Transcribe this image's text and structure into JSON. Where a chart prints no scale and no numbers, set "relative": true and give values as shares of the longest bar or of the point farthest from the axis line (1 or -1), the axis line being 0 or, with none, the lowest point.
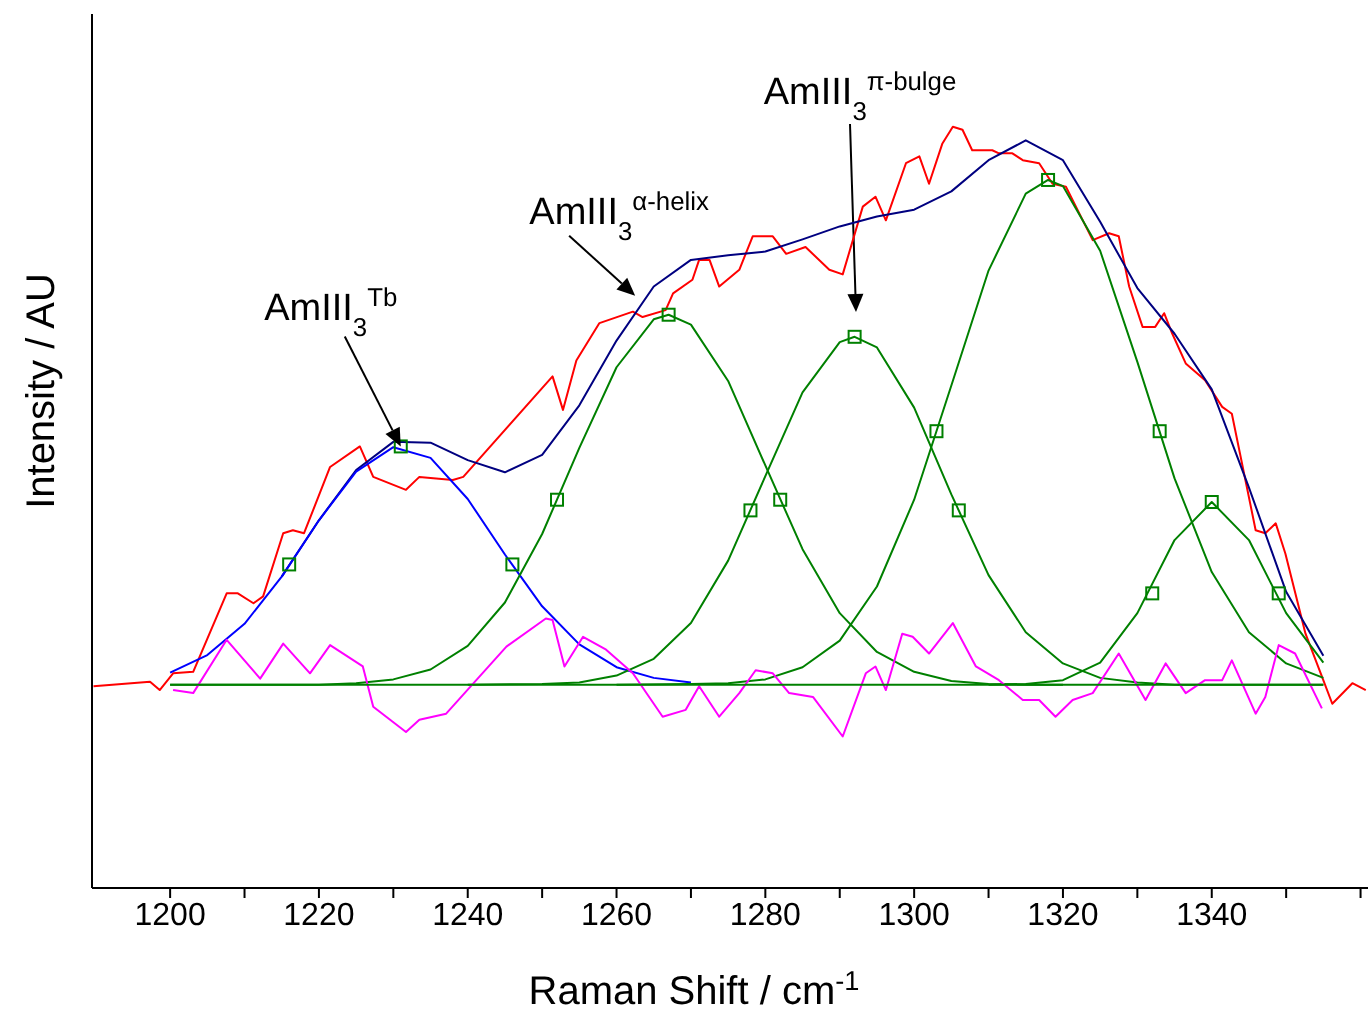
{
  "chart_data": {
    "type": "line",
    "xlabel": "Raman Shift / cm$^{-1}$",
    "ylabel": "Intensity / AU",
    "relative": true,
    "marker": "none",
    "xlim": [
      1189.5,
      1361
    ],
    "xticks": [
      1200,
      {
        "value": 1210,
        "label": null
      },
      1220,
      {
        "value": 1230,
        "label": null
      },
      1240,
      {
        "value": 1250,
        "label": null
      },
      1260,
      {
        "value": 1270,
        "label": null
      },
      1280,
      {
        "value": 1290,
        "label": null
      },
      1300,
      {
        "value": 1310,
        "label": null
      },
      1320,
      {
        "value": 1330,
        "label": null
      },
      1340,
      {
        "value": 1350,
        "label": null
      },
      {
        "value": 1360,
        "label": null
      }
    ],
    "annotations": [
      {
        "text": "AmIII$_{3}$$^{Tb}$",
        "x": 1231,
        "y": 0.58
      },
      {
        "text": "AmIII$_{3}$$^{α-helix}$",
        "x": 1262.5,
        "y": 0.778
      },
      "AmIII$_{3}$$^{π-bulge}$"
    ],
    "series": [
      {
        "color": "#ff0000",
        "x": [
          1189.7,
          1197.3,
          1198.6,
          1200.4,
          1203.1,
          1207.6,
          1209.1,
          1211.2,
          1212.5,
          1215.2,
          1216.5,
          1218,
          1221.5,
          1225.5,
          1227.3,
          1231.7,
          1233.5,
          1238,
          1239.4,
          1251.4,
          1252.8,
          1254.6,
          1257.7,
          1262.2,
          1263.5,
          1266.6,
          1267.6,
          1270.2,
          1271.1,
          1272.5,
          1273.8,
          1276.5,
          1278.3,
          1281,
          1282.8,
          1285.4,
          1288.6,
          1290.4,
          1293.1,
          1294.8,
          1296.2,
          1298.9,
          1300.7,
          1302,
          1303.8,
          1305.2,
          1306.5,
          1307.8,
          1310.5,
          1311.4,
          1313.2,
          1314.6,
          1316.8,
          1318.6,
          1320.4,
          1324,
          1326.2,
          1327.5,
          1328.9,
          1330.7,
          1332.4,
          1333.6,
          1334.7,
          1336.5,
          1339.1,
          1341.4,
          1342.7,
          1345.9,
          1347.2,
          1348.6,
          1349.9,
          1352.6,
          1354.8,
          1356.2,
          1358.9,
          1360.7
        ],
        "values": [
          0.265,
          0.271,
          0.26,
          0.282,
          0.284,
          0.387,
          0.387,
          0.374,
          0.383,
          0.466,
          0.47,
          0.466,
          0.553,
          0.58,
          0.54,
          0.523,
          0.54,
          0.536,
          0.54,
          0.672,
          0.628,
          0.693,
          0.742,
          0.757,
          0.75,
          0.759,
          0.781,
          0.799,
          0.825,
          0.825,
          0.79,
          0.812,
          0.856,
          0.856,
          0.833,
          0.842,
          0.812,
          0.806,
          0.895,
          0.908,
          0.877,
          0.952,
          0.961,
          0.925,
          0.978,
          1.0,
          0.996,
          0.969,
          0.969,
          0.965,
          0.965,
          0.956,
          0.952,
          0.925,
          0.921,
          0.851,
          0.86,
          0.856,
          0.79,
          0.737,
          0.737,
          0.755,
          0.728,
          0.689,
          0.667,
          0.632,
          0.623,
          0.47,
          0.466,
          0.479,
          0.439,
          0.334,
          0.278,
          0.242,
          0.269,
          0.26
        ]
      },
      {
        "color": "#000080",
        "x": [
          1215,
          1220,
          1225,
          1230,
          1235,
          1240,
          1245,
          1250,
          1255,
          1260,
          1265,
          1270,
          1275,
          1280,
          1285,
          1290,
          1295,
          1300,
          1305,
          1310,
          1315,
          1320,
          1325,
          1330,
          1335,
          1340,
          1345,
          1350,
          1355
        ],
        "values": [
          0.409,
          0.483,
          0.549,
          0.586,
          0.585,
          0.562,
          0.546,
          0.569,
          0.634,
          0.719,
          0.79,
          0.825,
          0.831,
          0.836,
          0.852,
          0.869,
          0.882,
          0.891,
          0.915,
          0.956,
          0.982,
          0.956,
          0.875,
          0.788,
          0.728,
          0.655,
          0.526,
          0.389,
          0.305
        ]
      },
      {
        "color": "#0000ff",
        "x": [
          1200,
          1205,
          1210,
          1215,
          1220,
          1225,
          1230,
          1235,
          1240,
          1245,
          1250,
          1255,
          1260,
          1265,
          1270
        ],
        "values": [
          0.283,
          0.306,
          0.347,
          0.409,
          0.483,
          0.547,
          0.579,
          0.565,
          0.511,
          0.438,
          0.37,
          0.32,
          0.29,
          0.276,
          0.27
        ]
      },
      {
        "color": "#008000",
        "x": [
          1200,
          1220,
          1225,
          1230,
          1235,
          1240,
          1245,
          1250,
          1255,
          1260,
          1265,
          1267,
          1270,
          1275,
          1280,
          1285,
          1290,
          1295,
          1300,
          1305,
          1310,
          1315,
          1320
        ],
        "values": [
          0.267,
          0.267,
          0.269,
          0.274,
          0.287,
          0.318,
          0.375,
          0.465,
          0.578,
          0.684,
          0.747,
          0.753,
          0.74,
          0.666,
          0.555,
          0.445,
          0.361,
          0.31,
          0.284,
          0.272,
          0.268,
          0.267,
          0.267
        ]
      },
      {
        "color": "#008000",
        "x": [
          1240,
          1250,
          1255,
          1260,
          1265,
          1270,
          1275,
          1280,
          1285,
          1290,
          1292,
          1295,
          1300,
          1305,
          1310,
          1315,
          1320,
          1325,
          1330,
          1335,
          1355
        ],
        "values": [
          0.267,
          0.268,
          0.27,
          0.279,
          0.301,
          0.348,
          0.43,
          0.541,
          0.651,
          0.717,
          0.724,
          0.71,
          0.631,
          0.517,
          0.411,
          0.336,
          0.295,
          0.276,
          0.27,
          0.267,
          0.267
        ]
      },
      {
        "color": "#008000",
        "x": [
          1260,
          1270,
          1275,
          1280,
          1285,
          1290,
          1295,
          1300,
          1305,
          1310,
          1315,
          1318,
          1320,
          1325,
          1330,
          1335,
          1340,
          1345,
          1350,
          1355
        ],
        "values": [
          0.267,
          0.268,
          0.269,
          0.274,
          0.29,
          0.325,
          0.396,
          0.51,
          0.66,
          0.811,
          0.912,
          0.93,
          0.922,
          0.837,
          0.691,
          0.538,
          0.415,
          0.336,
          0.295,
          0.276
        ]
      },
      {
        "color": "#008000",
        "x": [
          1310,
          1315,
          1320,
          1325,
          1330,
          1335,
          1340,
          1345,
          1350,
          1355
        ],
        "values": [
          0.267,
          0.268,
          0.273,
          0.296,
          0.361,
          0.457,
          0.507,
          0.457,
          0.361,
          0.296
        ]
      },
      {
        "color": "#ff00ff",
        "x": [
          1200.4,
          1203.1,
          1207.6,
          1212.1,
          1215.2,
          1218.8,
          1221.5,
          1225.9,
          1227.3,
          1231.7,
          1233.5,
          1237.1,
          1245.2,
          1250.5,
          1251.4,
          1253,
          1255.5,
          1258.6,
          1262.2,
          1266.2,
          1269.3,
          1271.1,
          1273.8,
          1276.5,
          1278.7,
          1281,
          1283.2,
          1286.4,
          1290.4,
          1293.5,
          1294.8,
          1296.2,
          1298.4,
          1299.8,
          1302,
          1305.2,
          1308.3,
          1311.4,
          1314.6,
          1316.8,
          1319,
          1321.3,
          1324,
          1327.5,
          1331.1,
          1333.8,
          1336.5,
          1339.1,
          1341.4,
          1342.7,
          1345.9,
          1347.2,
          1349,
          1351.2,
          1354.8
        ],
        "values": [
          0.26,
          0.256,
          0.326,
          0.275,
          0.321,
          0.282,
          0.319,
          0.291,
          0.238,
          0.205,
          0.221,
          0.229,
          0.317,
          0.354,
          0.352,
          0.291,
          0.33,
          0.313,
          0.282,
          0.225,
          0.234,
          0.265,
          0.225,
          0.256,
          0.286,
          0.282,
          0.256,
          0.251,
          0.199,
          0.282,
          0.291,
          0.26,
          0.334,
          0.33,
          0.308,
          0.348,
          0.291,
          0.273,
          0.247,
          0.247,
          0.225,
          0.247,
          0.256,
          0.308,
          0.247,
          0.295,
          0.256,
          0.273,
          0.273,
          0.299,
          0.229,
          0.251,
          0.319,
          0.308,
          0.236
        ]
      },
      {
        "color": "#008000",
        "x": [
          1200,
          1355
        ],
        "values": [
          0.267,
          0.267
        ]
      },
      {
        "type": "scatter",
        "marker": "square",
        "color": "#008000",
        "x": [
          1216,
          1231,
          1246,
          1252,
          1267,
          1282,
          1278,
          1292,
          1306,
          1303,
          1318,
          1333,
          1332,
          1340,
          1349
        ],
        "values": [
          0.425,
          0.58,
          0.425,
          0.51,
          0.753,
          0.51,
          0.496,
          0.724,
          0.496,
          0.6,
          0.93,
          0.6,
          0.387,
          0.507,
          0.387
        ]
      }
    ]
  }
}
